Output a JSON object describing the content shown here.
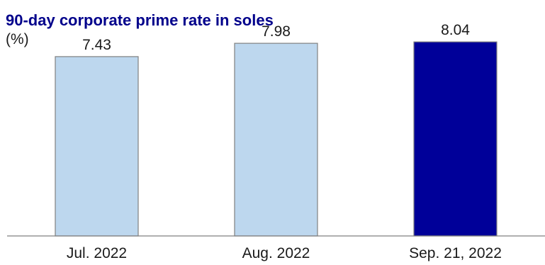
{
  "chart_data": {
    "type": "bar",
    "title": "90-day corporate prime rate in soles",
    "unit": "(%)",
    "categories": [
      "Jul. 2022",
      "Aug. 2022",
      "Sep. 21, 2022"
    ],
    "values": [
      7.43,
      7.98,
      8.04
    ],
    "value_labels": [
      "7.43",
      "7.98",
      "8.04"
    ],
    "ylim": [
      0,
      8.6
    ],
    "grid": false,
    "legend": "none",
    "colors": {
      "bars": [
        "#bdd7ee",
        "#bdd7ee",
        "#000099"
      ],
      "bar_stroke": "#808080",
      "axis": "#808080"
    }
  }
}
